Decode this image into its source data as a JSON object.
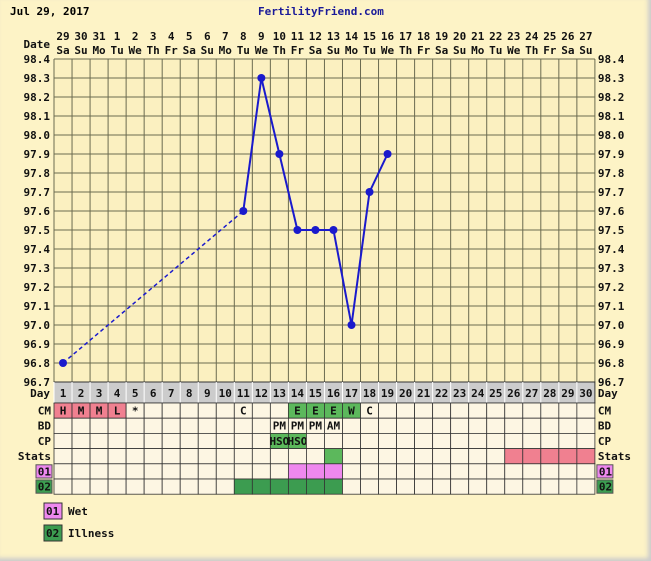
{
  "header": {
    "date": "Jul 29, 2017",
    "site": "FertilityFriend.com"
  },
  "chart_data": {
    "type": "line",
    "ylim": [
      96.7,
      98.4
    ],
    "yticks": [
      "98.4",
      "98.3",
      "98.2",
      "98.1",
      "98.0",
      "97.9",
      "97.8",
      "97.7",
      "97.6",
      "97.5",
      "97.4",
      "97.3",
      "97.2",
      "97.1",
      "97.0",
      "96.9",
      "96.8",
      "96.7"
    ],
    "date_label": "Date",
    "dates": [
      "29",
      "30",
      "31",
      "1",
      "2",
      "3",
      "4",
      "5",
      "6",
      "7",
      "8",
      "9",
      "10",
      "11",
      "12",
      "13",
      "14",
      "15",
      "16",
      "17",
      "18",
      "19",
      "20",
      "21",
      "22",
      "23",
      "24",
      "25",
      "26",
      "27"
    ],
    "weekdays": [
      "Sa",
      "Su",
      "Mo",
      "Tu",
      "We",
      "Th",
      "Fr",
      "Sa",
      "Su",
      "Mo",
      "Tu",
      "We",
      "Th",
      "Fr",
      "Sa",
      "Su",
      "Mo",
      "Tu",
      "We",
      "Th",
      "Fr",
      "Sa",
      "Su",
      "Mo",
      "Tu",
      "We",
      "Th",
      "Fr",
      "Sa",
      "Su"
    ],
    "day_label": "Day",
    "days": [
      1,
      2,
      3,
      4,
      5,
      6,
      7,
      8,
      9,
      10,
      11,
      12,
      13,
      14,
      15,
      16,
      17,
      18,
      19,
      20,
      21,
      22,
      23,
      24,
      25,
      26,
      27,
      28,
      29,
      30
    ],
    "temps": [
      {
        "day": 1,
        "value": 96.8
      },
      {
        "day": 11,
        "value": 97.6
      },
      {
        "day": 12,
        "value": 98.3
      },
      {
        "day": 13,
        "value": 97.9
      },
      {
        "day": 14,
        "value": 97.5
      },
      {
        "day": 15,
        "value": 97.5
      },
      {
        "day": 16,
        "value": 97.5
      },
      {
        "day": 17,
        "value": 97.0
      },
      {
        "day": 18,
        "value": 97.7
      },
      {
        "day": 19,
        "value": 97.9
      }
    ],
    "dashed_segment": [
      1,
      11
    ],
    "line_color": "#1a1acc",
    "rows": [
      {
        "label": "CM",
        "cells": {
          "1": {
            "t": "H",
            "c": "#f08090"
          },
          "2": {
            "t": "M",
            "c": "#f08090"
          },
          "3": {
            "t": "M",
            "c": "#f08090"
          },
          "4": {
            "t": "L",
            "c": "#f08090"
          },
          "5": {
            "t": "*"
          },
          "11": {
            "t": "C"
          },
          "14": {
            "t": "E",
            "c": "#5cb85c"
          },
          "15": {
            "t": "E",
            "c": "#5cb85c"
          },
          "16": {
            "t": "E",
            "c": "#5cb85c"
          },
          "17": {
            "t": "W",
            "c": "#5cb85c"
          },
          "18": {
            "t": "C"
          }
        }
      },
      {
        "label": "BD",
        "cells": {
          "13": {
            "t": "PM"
          },
          "14": {
            "t": "PM"
          },
          "15": {
            "t": "PM"
          },
          "16": {
            "t": "AM"
          }
        }
      },
      {
        "label": "CP",
        "cells": {
          "13": {
            "t": "HSO",
            "c": "#5cb85c"
          },
          "14": {
            "t": "HSO",
            "c": "#5cb85c"
          }
        }
      },
      {
        "label": "Stats",
        "cells": {
          "16": {
            "t": "",
            "c": "#5cb85c"
          },
          "26": {
            "t": "",
            "c": "#f08090"
          },
          "27": {
            "t": "",
            "c": "#f08090"
          },
          "28": {
            "t": "",
            "c": "#f08090"
          },
          "29": {
            "t": "",
            "c": "#f08090"
          },
          "30": {
            "t": "",
            "c": "#f08090"
          }
        }
      },
      {
        "label": "01",
        "labelColor": "#ee88ee",
        "cells": {
          "14": {
            "t": "",
            "c": "#ee88ee"
          },
          "15": {
            "t": "",
            "c": "#ee88ee"
          },
          "16": {
            "t": "",
            "c": "#ee88ee"
          }
        }
      },
      {
        "label": "02",
        "labelColor": "#3c9c50",
        "cells": {
          "11": {
            "t": "",
            "c": "#3c9c50"
          },
          "12": {
            "t": "",
            "c": "#3c9c50"
          },
          "13": {
            "t": "",
            "c": "#3c9c50"
          },
          "14": {
            "t": "",
            "c": "#3c9c50"
          },
          "15": {
            "t": "",
            "c": "#3c9c50"
          },
          "16": {
            "t": "",
            "c": "#3c9c50"
          }
        }
      }
    ],
    "legend": [
      {
        "code": "01",
        "label": "Wet",
        "color": "#ee88ee"
      },
      {
        "code": "02",
        "label": "Illness",
        "color": "#3c9c50"
      }
    ]
  }
}
